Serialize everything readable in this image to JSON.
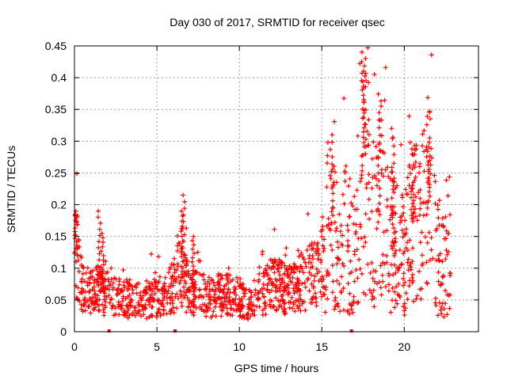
{
  "chart_data": {
    "type": "scatter",
    "title": "Day 030 of 2017, SRMTID for receiver qsec",
    "xlabel": "GPS time / hours",
    "ylabel": "SRMTID / TECUs",
    "xlim": [
      0,
      24.5
    ],
    "ylim": [
      0,
      0.45
    ],
    "x_ticks": [
      0,
      5,
      10,
      15,
      20
    ],
    "x_tick_labels": [
      "0",
      "5",
      "10",
      "15",
      "20"
    ],
    "y_ticks": [
      0,
      0.05,
      0.1,
      0.15,
      0.2,
      0.25,
      0.3,
      0.35,
      0.4,
      0.45
    ],
    "y_tick_labels": [
      "0",
      "0.05",
      "0.1",
      "0.15",
      "0.2",
      "0.25",
      "0.3",
      "0.35",
      "0.4",
      "0.45"
    ],
    "grid": true,
    "marker": "plus",
    "color": "#ff0000",
    "series": [
      {
        "name": "SRMTID",
        "envelope_x": [
          0.0,
          0.2,
          0.5,
          1.0,
          1.5,
          2.0,
          2.5,
          3.0,
          3.5,
          4.0,
          4.5,
          5.0,
          5.5,
          6.0,
          6.3,
          6.6,
          7.0,
          7.5,
          8.0,
          8.5,
          9.0,
          9.5,
          10.0,
          10.5,
          11.0,
          11.5,
          12.0,
          12.5,
          13.0,
          13.5,
          14.0,
          14.5,
          15.0,
          15.3,
          15.6,
          16.0,
          16.5,
          17.0,
          17.3,
          17.6,
          17.8,
          18.0,
          18.5,
          18.8,
          19.0,
          19.5,
          19.8,
          20.0,
          20.3,
          20.6,
          21.0,
          21.3,
          21.6,
          22.0,
          22.3,
          22.6,
          22.8
        ],
        "envelope_y": [
          0.14,
          0.1,
          0.07,
          0.06,
          0.065,
          0.06,
          0.055,
          0.05,
          0.055,
          0.05,
          0.05,
          0.055,
          0.055,
          0.07,
          0.1,
          0.08,
          0.065,
          0.06,
          0.055,
          0.055,
          0.06,
          0.055,
          0.05,
          0.045,
          0.055,
          0.06,
          0.075,
          0.07,
          0.065,
          0.075,
          0.08,
          0.09,
          0.1,
          0.17,
          0.16,
          0.13,
          0.15,
          0.12,
          0.18,
          0.28,
          0.25,
          0.17,
          0.19,
          0.24,
          0.16,
          0.13,
          0.18,
          0.09,
          0.18,
          0.17,
          0.15,
          0.2,
          0.22,
          0.13,
          0.11,
          0.12,
          0.12
        ],
        "peaks": [
          {
            "x": 0.1,
            "y": 0.19
          },
          {
            "x": 1.5,
            "y": 0.19
          },
          {
            "x": 1.7,
            "y": 0.155
          },
          {
            "x": 6.6,
            "y": 0.215
          },
          {
            "x": 6.5,
            "y": 0.19
          },
          {
            "x": 7.2,
            "y": 0.15
          },
          {
            "x": 15.6,
            "y": 0.31
          },
          {
            "x": 17.5,
            "y": 0.44
          },
          {
            "x": 17.6,
            "y": 0.43
          },
          {
            "x": 18.5,
            "y": 0.345
          },
          {
            "x": 19.3,
            "y": 0.32
          },
          {
            "x": 21.5,
            "y": 0.305
          },
          {
            "x": 20.5,
            "y": 0.235
          }
        ],
        "baseline_marks_x": [
          2.1,
          6.1,
          16.8
        ]
      }
    ]
  }
}
